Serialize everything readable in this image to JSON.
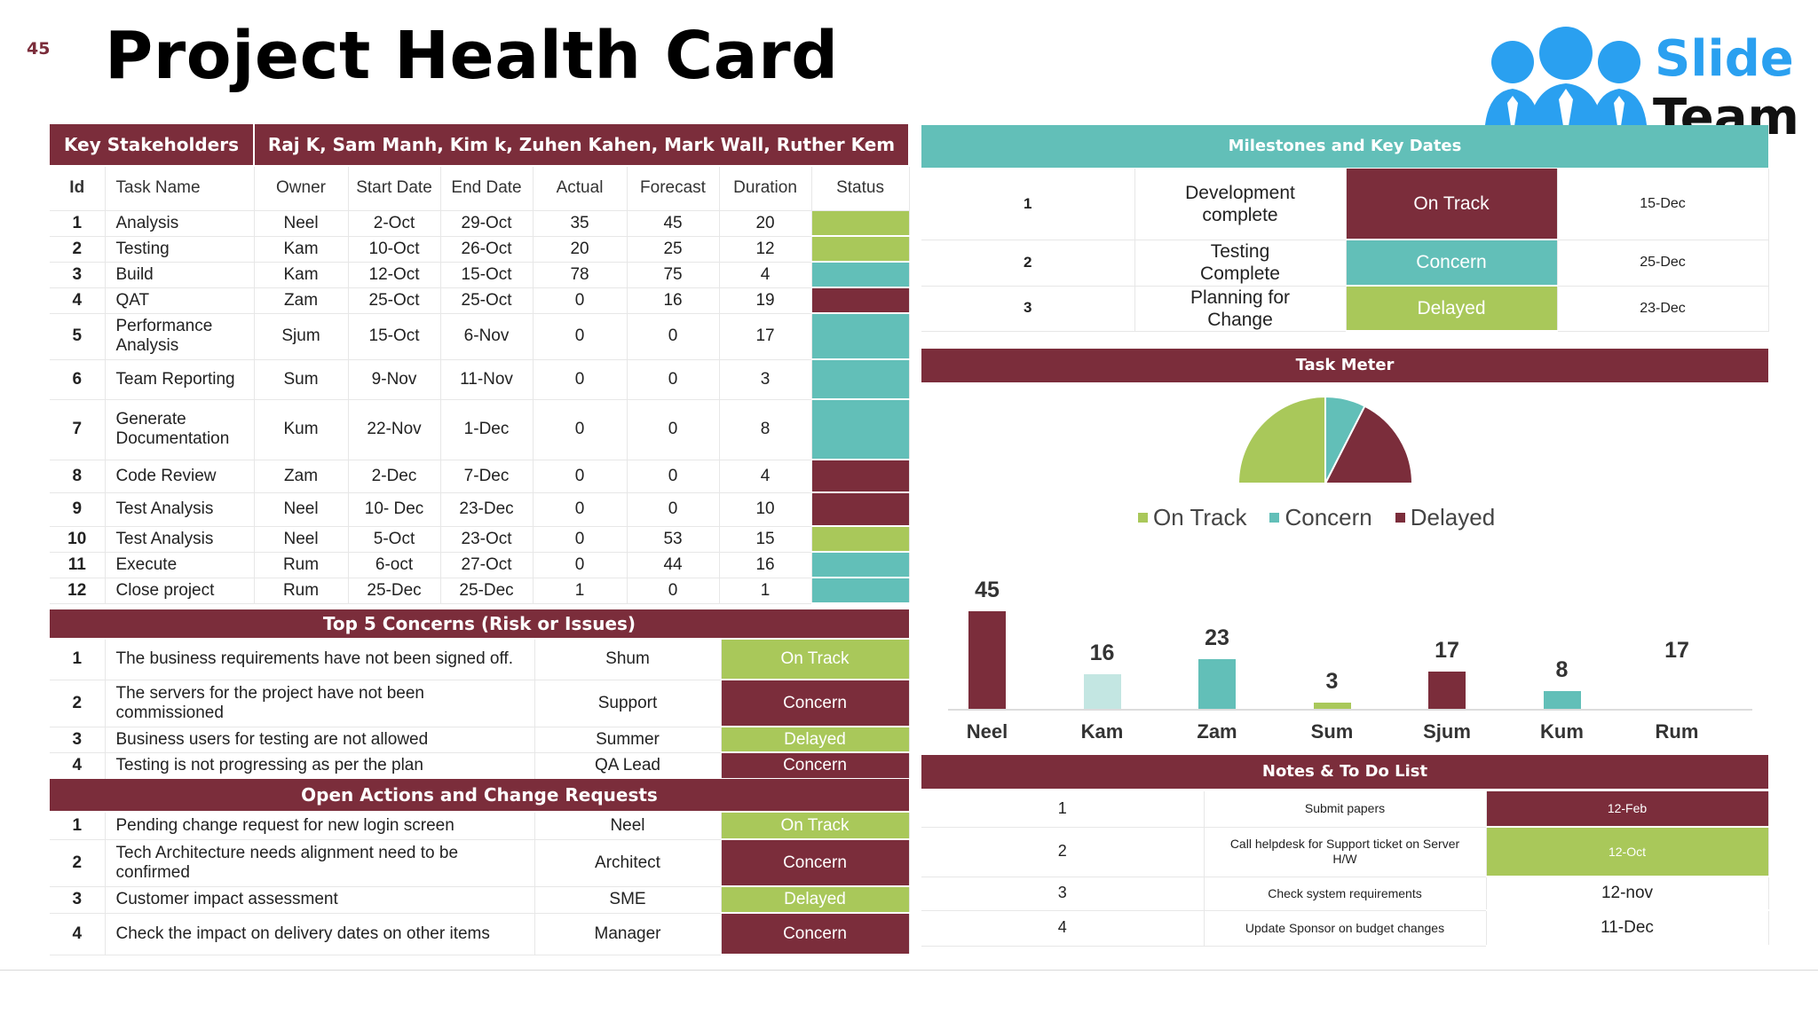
{
  "slide_number": "45",
  "title": "Project Health Card",
  "logo": {
    "line1": "Slide",
    "line2": "Team"
  },
  "stakeholders": {
    "label": "Key Stakeholders",
    "names": "Raj K, Sam Manh, Kim k, Zuhen Kahen, Mark Wall, Ruther Kem"
  },
  "task_table": {
    "columns": [
      "Id",
      "Task Name",
      "Owner",
      "Start Date",
      "End Date",
      "Actual",
      "Forecast",
      "Duration",
      "Status"
    ],
    "rows": [
      {
        "id": "1",
        "name": "Analysis",
        "owner": "Neel",
        "start": "2-Oct",
        "end": "29-Oct",
        "actual": "35",
        "forecast": "45",
        "duration": "20",
        "status": "ontrack"
      },
      {
        "id": "2",
        "name": "Testing",
        "owner": "Kam",
        "start": "10-Oct",
        "end": "26-Oct",
        "actual": "20",
        "forecast": "25",
        "duration": "12",
        "status": "ontrack"
      },
      {
        "id": "3",
        "name": "Build",
        "owner": "Kam",
        "start": "12-Oct",
        "end": "15-Oct",
        "actual": "78",
        "forecast": "75",
        "duration": "4",
        "status": "concern"
      },
      {
        "id": "4",
        "name": "QAT",
        "owner": "Zam",
        "start": "25-Oct",
        "end": "25-Oct",
        "actual": "0",
        "forecast": "16",
        "duration": "19",
        "status": "delayed"
      },
      {
        "id": "5",
        "name": "Performance Analysis",
        "owner": "Sjum",
        "start": "15-Oct",
        "end": "6-Nov",
        "actual": "0",
        "forecast": "0",
        "duration": "17",
        "status": "concern"
      },
      {
        "id": "6",
        "name": "Team Reporting",
        "owner": "Sum",
        "start": "9-Nov",
        "end": "11-Nov",
        "actual": "0",
        "forecast": "0",
        "duration": "3",
        "status": "concern"
      },
      {
        "id": "7",
        "name": "Generate Documentation",
        "owner": "Kum",
        "start": "22-Nov",
        "end": "1-Dec",
        "actual": "0",
        "forecast": "0",
        "duration": "8",
        "status": "concern"
      },
      {
        "id": "8",
        "name": "Code Review",
        "owner": "Zam",
        "start": "2-Dec",
        "end": "7-Dec",
        "actual": "0",
        "forecast": "0",
        "duration": "4",
        "status": "delayed"
      },
      {
        "id": "9",
        "name": "Test Analysis",
        "owner": "Neel",
        "start": "10- Dec",
        "end": "23-Dec",
        "actual": "0",
        "forecast": "0",
        "duration": "10",
        "status": "delayed"
      },
      {
        "id": "10",
        "name": "Test Analysis",
        "owner": "Neel",
        "start": "5-Oct",
        "end": "23-Oct",
        "actual": "0",
        "forecast": "53",
        "duration": "15",
        "status": "ontrack"
      },
      {
        "id": "11",
        "name": "Execute",
        "owner": "Rum",
        "start": "6-oct",
        "end": "27-Oct",
        "actual": "0",
        "forecast": "44",
        "duration": "16",
        "status": "concern"
      },
      {
        "id": "12",
        "name": "Close project",
        "owner": "Rum",
        "start": "25-Dec",
        "end": "25-Dec",
        "actual": "1",
        "forecast": "0",
        "duration": "1",
        "status": "concern"
      }
    ]
  },
  "concerns": {
    "title": "Top 5 Concerns (Risk or Issues)",
    "rows": [
      {
        "id": "1",
        "text": "The business requirements have not been signed off.",
        "owner": "Shum",
        "status": "On Track",
        "kind": "ontrack"
      },
      {
        "id": "2",
        "text": "The servers for the project have not been commissioned",
        "owner": "Support",
        "status": "Concern",
        "kind": "concern"
      },
      {
        "id": "3",
        "text": "Business users for testing are not allowed",
        "owner": "Summer",
        "status": "Delayed",
        "kind": "delayed"
      },
      {
        "id": "4",
        "text": "Testing is not progressing as per the plan",
        "owner": "QA Lead",
        "status": "Concern",
        "kind": "concern"
      }
    ]
  },
  "actions": {
    "title": "Open Actions and Change Requests",
    "rows": [
      {
        "id": "1",
        "text": "Pending change request for new login screen",
        "owner": "Neel",
        "status": "On Track",
        "kind": "ontrack"
      },
      {
        "id": "2",
        "text": "Tech Architecture needs alignment need to be confirmed",
        "owner": "Architect",
        "status": "Concern",
        "kind": "concern"
      },
      {
        "id": "3",
        "text": "Customer impact assessment",
        "owner": "SME",
        "status": "Delayed",
        "kind": "delayed"
      },
      {
        "id": "4",
        "text": "Check the impact on delivery dates on other items",
        "owner": "Manager",
        "status": "Concern",
        "kind": "concern"
      }
    ]
  },
  "milestones": {
    "title": "Milestones and Key Dates",
    "rows": [
      {
        "id": "1",
        "name": "Development complete",
        "status": "On Track",
        "date": "15-Dec",
        "color": "#7b2d3b"
      },
      {
        "id": "2",
        "name": "Testing Complete",
        "status": "Concern",
        "date": "25-Dec",
        "color": "#62bfb8"
      },
      {
        "id": "3",
        "name": "Planning for Change",
        "status": "Delayed",
        "date": "23-Dec",
        "color": "#a9c85a"
      }
    ]
  },
  "task_meter": {
    "title": "Task Meter",
    "legend": [
      {
        "label": "On Track",
        "color": "#a9c85a"
      },
      {
        "label": "Concern",
        "color": "#62bfb8"
      },
      {
        "label": "Delayed",
        "color": "#7b2d3b"
      }
    ]
  },
  "chart_data": [
    {
      "type": "pie",
      "shape": "half-pie (upper semicircle)",
      "categories": [
        "On Track",
        "Concern",
        "Delayed"
      ],
      "values": [
        50,
        15,
        35
      ],
      "colors": [
        "#a9c85a",
        "#62bfb8",
        "#7b2d3b"
      ]
    },
    {
      "type": "bar",
      "categories": [
        "Neel",
        "Kam",
        "Zam",
        "Sum",
        "Sjum",
        "Kum",
        "Rum"
      ],
      "values": [
        45,
        16,
        23,
        3,
        17,
        8,
        17
      ],
      "colors": [
        "#7b2d3b",
        "#c3e6e2",
        "#62bfb8",
        "#a9c85a",
        "#7b2d3b",
        "#62bfb8",
        "#ffffff"
      ],
      "ylim": [
        0,
        45
      ],
      "grid": false
    }
  ],
  "notes": {
    "title": "Notes & To Do List",
    "rows": [
      {
        "id": "1",
        "text": "Submit papers",
        "date": "12-Feb",
        "bg": "#7b2d3b",
        "fg": "#ffffff"
      },
      {
        "id": "2",
        "text": "Call helpdesk for Support ticket on Server H/W",
        "date": "12-Oct",
        "bg": "#a9c85a",
        "fg": "#ffffff"
      },
      {
        "id": "3",
        "text": "Check system requirements",
        "date": "12-nov",
        "bg": "#ffffff",
        "fg": "#222222"
      },
      {
        "id": "4",
        "text": "Update Sponsor on budget changes",
        "date": "11-Dec",
        "bg": "#ffffff",
        "fg": "#222222"
      }
    ]
  },
  "colors": {
    "maroon": "#7b2d3b",
    "teal": "#62bfb8",
    "green": "#a9c85a"
  }
}
